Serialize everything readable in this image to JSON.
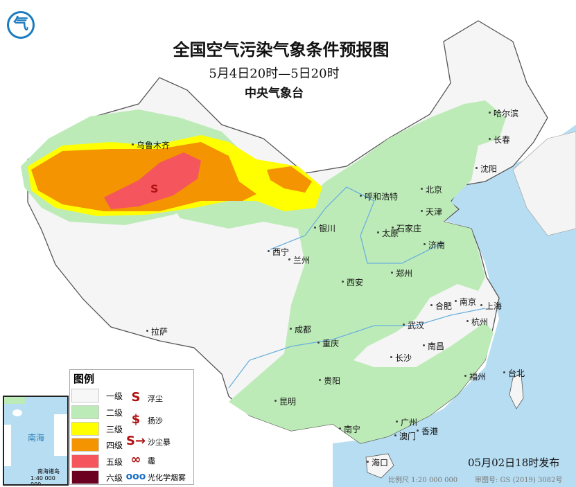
{
  "header": {
    "title": "全国空气污染气象条件预报图",
    "period": "5月4日20时—5日20时",
    "issuer": "中央气象台"
  },
  "colors": {
    "level1": "#f7f7f7",
    "level2": "#bdebb7",
    "level3": "#ffff00",
    "level4": "#f39400",
    "level5": "#f5555d",
    "level6": "#6b0020",
    "sea": "#b7ddf2",
    "symbol_red": "#b01010",
    "symbol_blue": "#1a6fc4"
  },
  "cities": [
    "乌鲁木齐",
    "哈尔滨",
    "长春",
    "沈阳",
    "北京",
    "天津",
    "呼和浩特",
    "银川",
    "太原",
    "石家庄",
    "济南",
    "西宁",
    "兰州",
    "郑州",
    "西安",
    "合肥",
    "南京",
    "上海",
    "杭州",
    "武汉",
    "成都",
    "重庆",
    "拉萨",
    "长沙",
    "南昌",
    "福州",
    "台北",
    "贵阳",
    "昆明",
    "南宁",
    "广州",
    "澳门",
    "香港",
    "海口"
  ],
  "legend": {
    "title": "图例",
    "levels": [
      "一级",
      "二级",
      "三级",
      "四级",
      "五级",
      "六级"
    ],
    "symbols": [
      {
        "label": "浮尘",
        "icon": "floating-dust-icon"
      },
      {
        "label": "扬沙",
        "icon": "blowing-sand-icon"
      },
      {
        "label": "沙尘暴",
        "icon": "sandstorm-icon"
      },
      {
        "label": "霾",
        "icon": "haze-icon"
      },
      {
        "label": "光化学烟雾",
        "icon": "photochemical-smog-icon"
      }
    ]
  },
  "inset": {
    "sea": "南海",
    "title": "南海诸岛",
    "scale": "1:40 000 000"
  },
  "footer": {
    "published": "05月02日18时发布",
    "scale": "比例尺 1:20 000 000",
    "map_no": "审图号: GS (2019) 3082号"
  }
}
